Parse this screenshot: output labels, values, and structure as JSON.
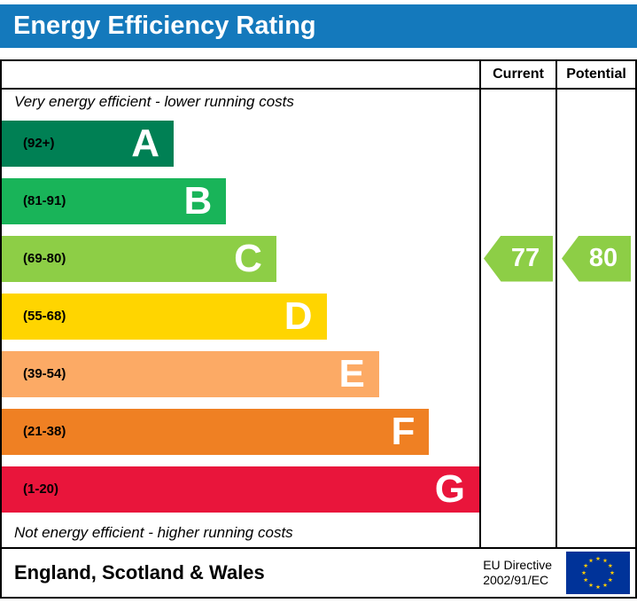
{
  "header": {
    "title": "Energy Efficiency Rating",
    "banner_color": "#1479bc"
  },
  "chart_data": {
    "type": "bar",
    "title": "Energy Efficiency Rating",
    "top_label": "Very energy efficient - lower running costs",
    "bottom_label": "Not energy efficient - higher running costs",
    "value_columns": [
      "Current",
      "Potential"
    ],
    "bands": [
      {
        "letter": "A",
        "range": "(92+)",
        "color": "#008054",
        "width_pct": 36
      },
      {
        "letter": "B",
        "range": "(81-91)",
        "color": "#19b459",
        "width_pct": 47
      },
      {
        "letter": "C",
        "range": "(69-80)",
        "color": "#8dce46",
        "width_pct": 57.5
      },
      {
        "letter": "D",
        "range": "(55-68)",
        "color": "#ffd500",
        "width_pct": 68
      },
      {
        "letter": "E",
        "range": "(39-54)",
        "color": "#fcaa65",
        "width_pct": 79
      },
      {
        "letter": "F",
        "range": "(21-38)",
        "color": "#ef8023",
        "width_pct": 89.5
      },
      {
        "letter": "G",
        "range": "(1-20)",
        "color": "#e9153b",
        "width_pct": 100
      }
    ],
    "current": {
      "value": 77,
      "band": "C",
      "color": "#8dce46"
    },
    "potential": {
      "value": 80,
      "band": "C",
      "color": "#8dce46"
    }
  },
  "footer": {
    "region": "England, Scotland & Wales",
    "directive_line1": "EU Directive",
    "directive_line2": "2002/91/EC",
    "eu_flag": {
      "background": "#003399",
      "stars": "#ffcc00"
    }
  }
}
